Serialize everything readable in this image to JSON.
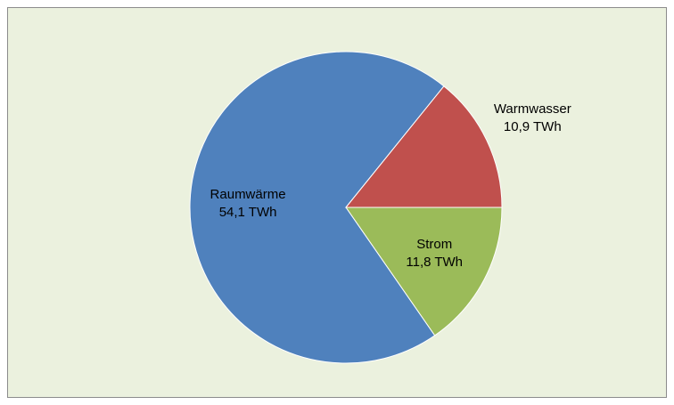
{
  "chart_data": {
    "type": "pie",
    "categories": [
      "Strom",
      "Raumwärme",
      "Warmwasser"
    ],
    "values": [
      11.8,
      54.1,
      10.9
    ],
    "value_labels": [
      "11,8 TWh",
      "54,1 TWh",
      "10,9 TWh"
    ],
    "colors": [
      "#9bbb59",
      "#4f81bd",
      "#c0504d"
    ]
  }
}
